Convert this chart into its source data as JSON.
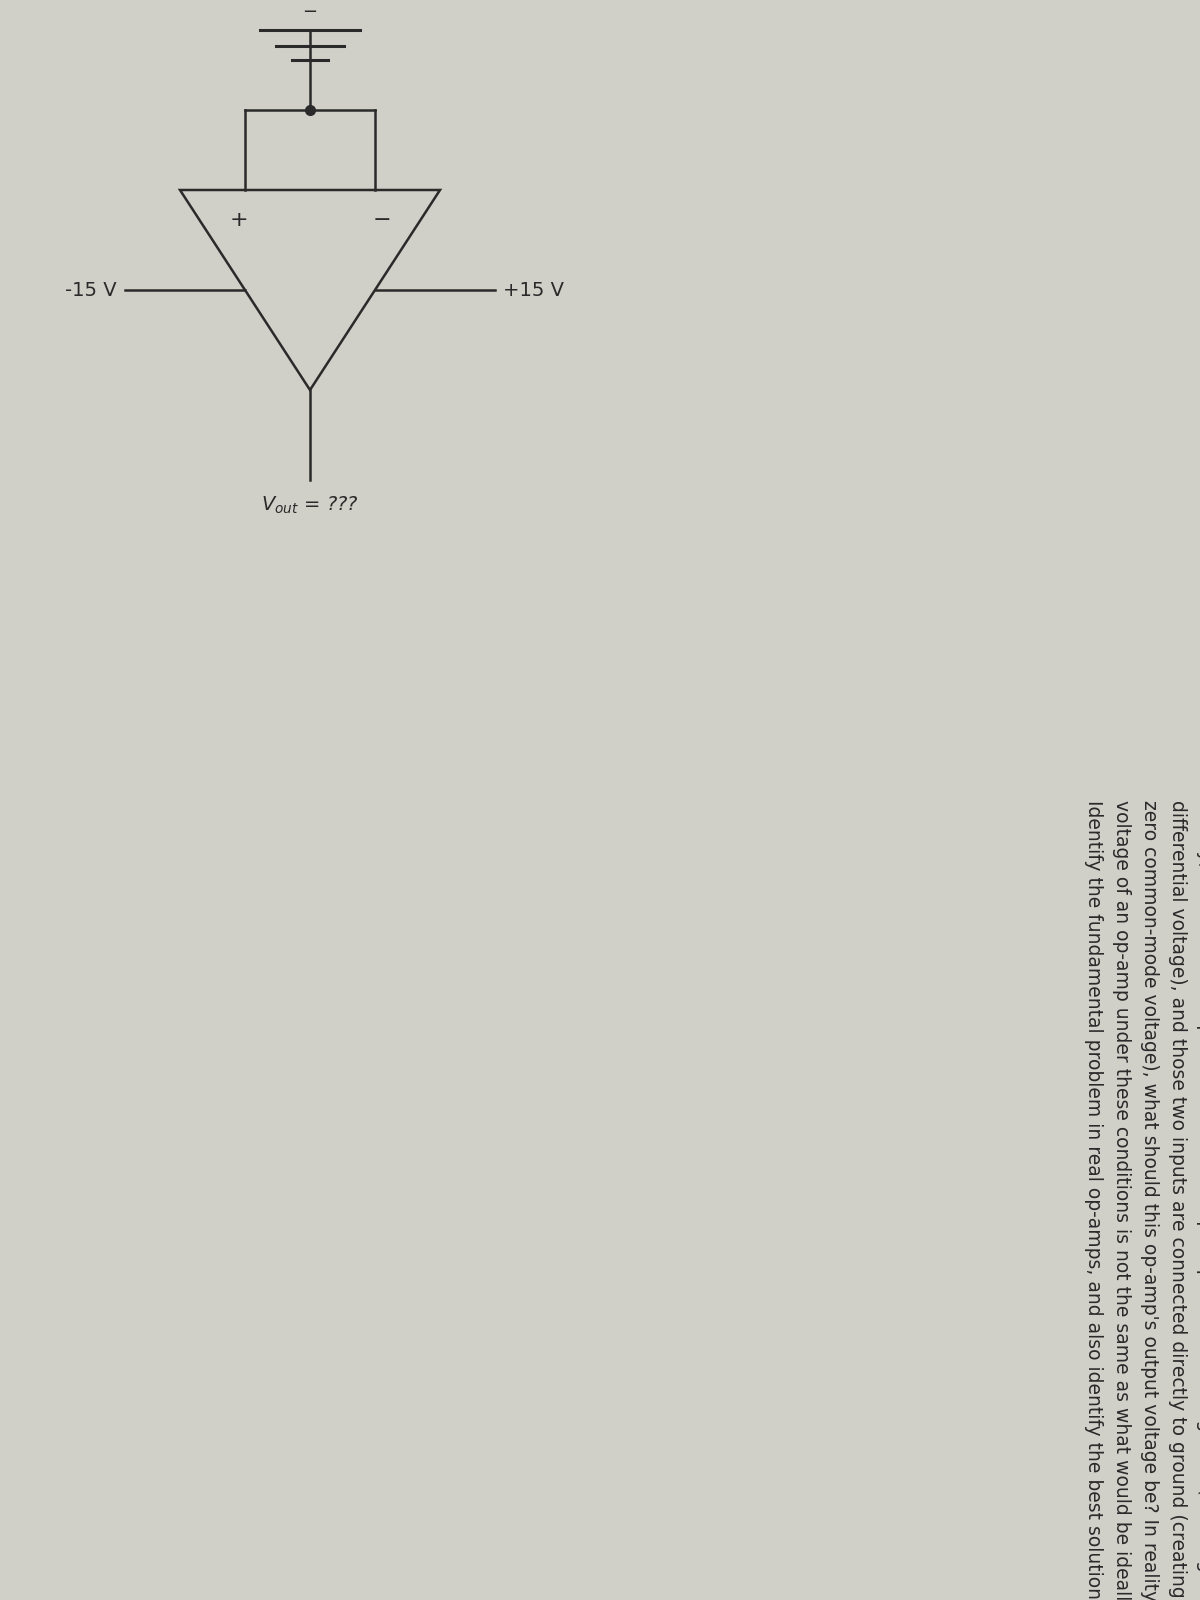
{
  "bg_color": "#d0cfc8",
  "line_color": "#2a2a2a",
  "text_color": "#2a2a2a",
  "circuit": {
    "v_plus_label": "+15 V",
    "v_minus_label": "-15 V",
    "vout_label": "V$_{out}$ = ???"
  },
  "text_block": {
    "lines": [
      "Ideally, when the two input terminals of an op-amp are shorted together (creating a condition of zero",
      "differential voltage), and those two inputs are connected directly to ground (creating a condition of",
      "zero common-mode voltage), what should this op-amp's output voltage be? In reality, the output",
      "voltage of an op-amp under these conditions is not the same as what would be ideally predicted.",
      "Identify the fundamental problem in real op-amps, and also identify the best solution."
    ],
    "fontsize": 13.5
  }
}
